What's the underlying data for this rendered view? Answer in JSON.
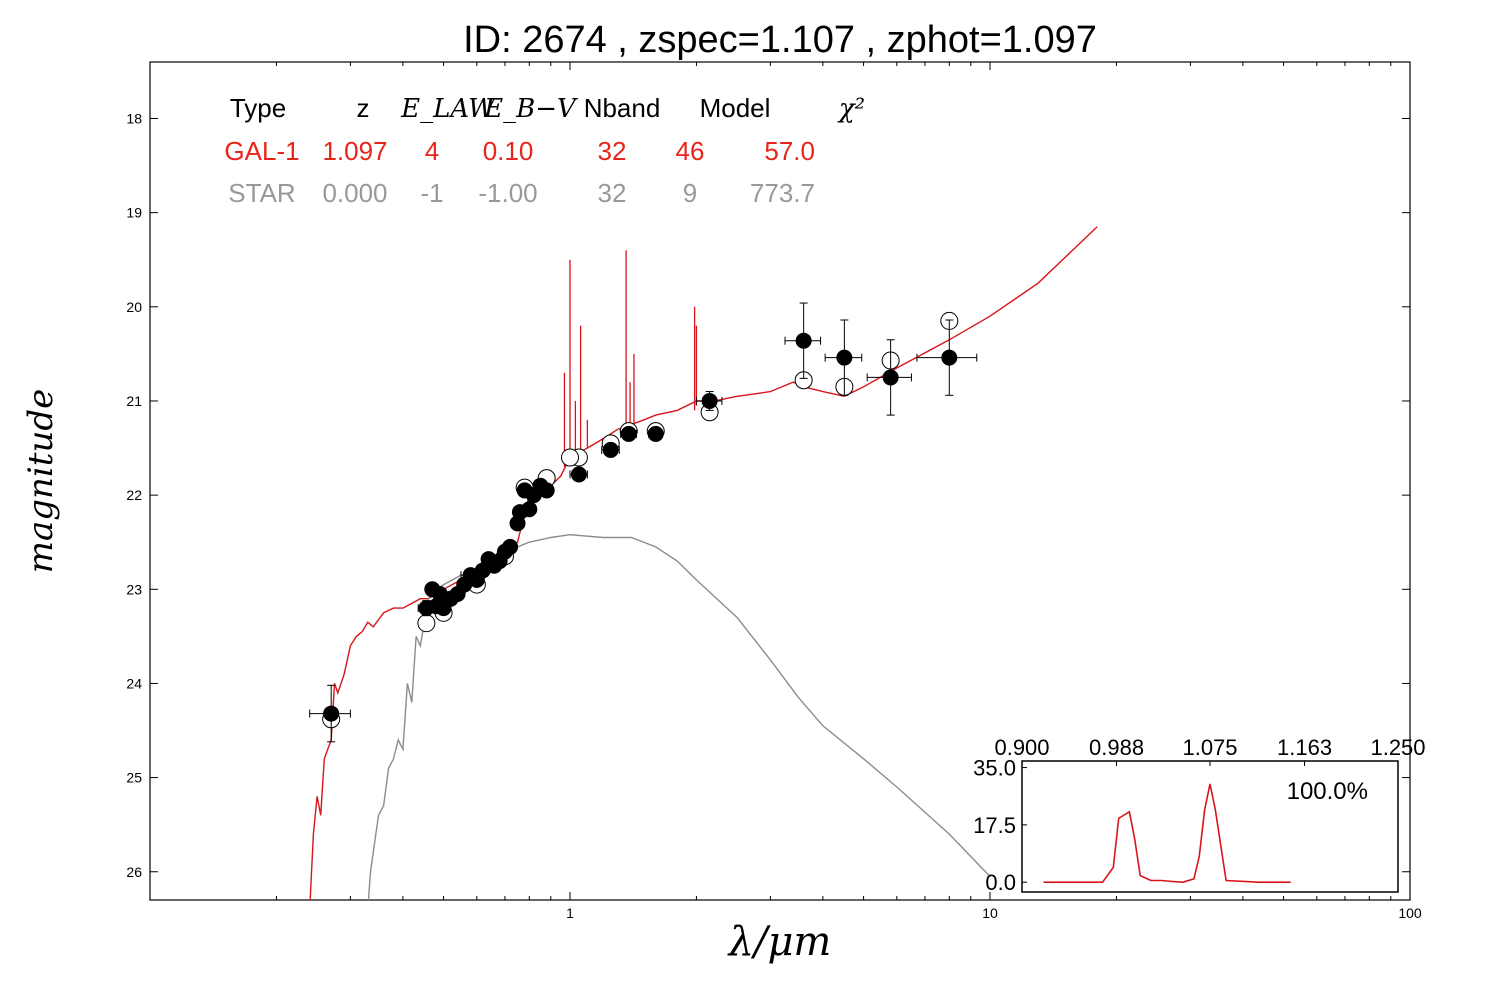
{
  "title": "ID:  2674  , zspec=1.107 , zphot=1.097",
  "chart_data": {
    "type": "scatter",
    "title": "ID:  2674  , zspec=1.107 , zphot=1.097",
    "xlabel": "λ/μm",
    "ylabel": "magnitude",
    "x_scale": "log",
    "xlim": [
      0.1,
      100
    ],
    "ylim": [
      26.3,
      17.4
    ],
    "y_inverted": true,
    "x_ticks": [
      1,
      10,
      100
    ],
    "x_tick_labels": [
      "1",
      "10",
      "100"
    ],
    "y_ticks": [
      18,
      19,
      20,
      21,
      22,
      23,
      24,
      25,
      26
    ],
    "y_tick_labels": [
      "18",
      "19",
      "20",
      "21",
      "22",
      "23",
      "24",
      "25",
      "26"
    ],
    "grid": false,
    "legend_table": {
      "headers": [
        "Type",
        "z",
        "E_LAW",
        "E_B−V",
        "Nband",
        "Model",
        "χ²"
      ],
      "rows": [
        {
          "cells": [
            "GAL-1",
            "1.097",
            "4",
            "0.10",
            "32",
            "46",
            "57.0"
          ],
          "color": "#e8251a"
        },
        {
          "cells": [
            "STAR",
            "0.000",
            "-1",
            "-1.00",
            "32",
            "9",
            "773.7"
          ],
          "color": "#999999"
        }
      ]
    },
    "series": [
      {
        "name": "GAL-1",
        "kind": "line",
        "color": "#d9141b",
        "x": [
          0.24,
          0.245,
          0.25,
          0.255,
          0.26,
          0.27,
          0.275,
          0.28,
          0.29,
          0.3,
          0.31,
          0.32,
          0.33,
          0.34,
          0.36,
          0.38,
          0.4,
          0.42,
          0.44,
          0.46,
          0.48,
          0.5,
          0.55,
          0.6,
          0.65,
          0.7,
          0.75,
          0.8,
          0.85,
          0.9,
          0.95,
          1.0,
          1.05,
          1.1,
          1.2,
          1.3,
          1.4,
          1.5,
          1.6,
          1.8,
          2.0,
          2.2,
          2.5,
          3.0,
          3.4,
          3.6,
          4.0,
          4.5,
          5.0,
          6.0,
          8.0,
          10.0,
          13.0,
          18.0
        ],
        "y": [
          26.4,
          25.6,
          25.2,
          25.4,
          24.8,
          24.6,
          24.0,
          24.1,
          23.9,
          23.6,
          23.5,
          23.45,
          23.35,
          23.4,
          23.25,
          23.2,
          23.2,
          23.15,
          23.1,
          23.1,
          23.05,
          23.0,
          22.9,
          22.8,
          22.7,
          22.6,
          22.5,
          22.0,
          21.95,
          21.9,
          21.8,
          21.6,
          21.55,
          21.5,
          21.4,
          21.3,
          21.25,
          21.2,
          21.15,
          21.1,
          21.0,
          21.0,
          20.95,
          20.9,
          20.8,
          20.85,
          20.9,
          20.95,
          20.85,
          20.65,
          20.35,
          20.1,
          19.75,
          19.15
        ]
      },
      {
        "name": "GAL-1 emission lines",
        "kind": "spikes",
        "color": "#d9141b",
        "x": [
          0.97,
          1.0,
          1.03,
          1.06,
          1.1,
          1.36,
          1.39,
          1.42,
          1.98,
          2.0
        ],
        "y_base": [
          21.7,
          21.6,
          21.6,
          21.55,
          21.5,
          21.3,
          21.28,
          21.3,
          21.1,
          21.05
        ],
        "y_peak": [
          20.7,
          19.5,
          21.0,
          20.2,
          21.2,
          19.4,
          20.8,
          20.5,
          20.0,
          20.2
        ]
      },
      {
        "name": "STAR",
        "kind": "line",
        "color": "#8c8c8c",
        "x": [
          0.33,
          0.335,
          0.34,
          0.35,
          0.36,
          0.37,
          0.38,
          0.39,
          0.4,
          0.41,
          0.42,
          0.43,
          0.44,
          0.46,
          0.48,
          0.5,
          0.55,
          0.6,
          0.65,
          0.7,
          0.75,
          0.8,
          0.9,
          1.0,
          1.2,
          1.4,
          1.6,
          1.8,
          2.0,
          2.5,
          3.0,
          3.5,
          4.0,
          5.0,
          6.0,
          8.0,
          10.0
        ],
        "y": [
          26.4,
          26.0,
          25.8,
          25.4,
          25.3,
          24.9,
          24.8,
          24.6,
          24.7,
          24.0,
          24.2,
          23.5,
          23.6,
          23.1,
          23.0,
          22.95,
          22.85,
          22.8,
          22.75,
          22.65,
          22.55,
          22.5,
          22.45,
          22.42,
          22.45,
          22.45,
          22.55,
          22.7,
          22.9,
          23.3,
          23.75,
          24.15,
          24.45,
          24.8,
          25.1,
          25.6,
          26.05
        ]
      },
      {
        "name": "observed",
        "kind": "points",
        "marker": "filled-circle",
        "color": "#000000",
        "points": [
          {
            "x": 0.27,
            "y": 24.32,
            "xerr": 0.03,
            "yerr": 0.3
          },
          {
            "x": 0.455,
            "y": 23.2,
            "xerr": 0.02,
            "yerr": 0.08
          },
          {
            "x": 0.47,
            "y": 23.0,
            "xerr": 0.01,
            "yerr": 0.05
          },
          {
            "x": 0.48,
            "y": 23.18,
            "xerr": 0.01,
            "yerr": 0.05
          },
          {
            "x": 0.49,
            "y": 23.05,
            "xerr": 0.01,
            "yerr": 0.05
          },
          {
            "x": 0.5,
            "y": 23.2,
            "xerr": 0.01,
            "yerr": 0.05
          },
          {
            "x": 0.52,
            "y": 23.1,
            "xerr": 0.01,
            "yerr": 0.05
          },
          {
            "x": 0.54,
            "y": 23.05,
            "xerr": 0.01,
            "yerr": 0.05
          },
          {
            "x": 0.56,
            "y": 22.95,
            "xerr": 0.01,
            "yerr": 0.05
          },
          {
            "x": 0.58,
            "y": 22.85,
            "xerr": 0.03,
            "yerr": 0.05
          },
          {
            "x": 0.6,
            "y": 22.9,
            "xerr": 0.01,
            "yerr": 0.05
          },
          {
            "x": 0.62,
            "y": 22.8,
            "xerr": 0.01,
            "yerr": 0.05
          },
          {
            "x": 0.64,
            "y": 22.68,
            "xerr": 0.02,
            "yerr": 0.05
          },
          {
            "x": 0.66,
            "y": 22.75,
            "xerr": 0.01,
            "yerr": 0.05
          },
          {
            "x": 0.68,
            "y": 22.7,
            "xerr": 0.01,
            "yerr": 0.05
          },
          {
            "x": 0.7,
            "y": 22.6,
            "xerr": 0.01,
            "yerr": 0.05
          },
          {
            "x": 0.72,
            "y": 22.55,
            "xerr": 0.01,
            "yerr": 0.05
          },
          {
            "x": 0.75,
            "y": 22.3,
            "xerr": 0.01,
            "yerr": 0.05
          },
          {
            "x": 0.76,
            "y": 22.18,
            "xerr": 0.01,
            "yerr": 0.05
          },
          {
            "x": 0.78,
            "y": 21.95,
            "xerr": 0.01,
            "yerr": 0.05
          },
          {
            "x": 0.8,
            "y": 22.15,
            "xerr": 0.01,
            "yerr": 0.05
          },
          {
            "x": 0.82,
            "y": 22.0,
            "xerr": 0.01,
            "yerr": 0.05
          },
          {
            "x": 0.85,
            "y": 21.9,
            "xerr": 0.02,
            "yerr": 0.05
          },
          {
            "x": 0.88,
            "y": 21.95,
            "xerr": 0.01,
            "yerr": 0.05
          },
          {
            "x": 1.05,
            "y": 21.78,
            "xerr": 0.05,
            "yerr": 0.05
          },
          {
            "x": 1.25,
            "y": 21.52,
            "xerr": 0.06,
            "yerr": 0.05
          },
          {
            "x": 1.38,
            "y": 21.35,
            "xerr": 0.06,
            "yerr": 0.05
          },
          {
            "x": 1.6,
            "y": 21.35,
            "xerr": 0.06,
            "yerr": 0.05
          },
          {
            "x": 2.15,
            "y": 21.0,
            "xerr": 0.15,
            "yerr": 0.1
          },
          {
            "x": 3.6,
            "y": 20.36,
            "xerr": 0.35,
            "yerr": 0.4
          },
          {
            "x": 4.5,
            "y": 20.54,
            "xerr": 0.45,
            "yerr": 0.4
          },
          {
            "x": 5.8,
            "y": 20.75,
            "xerr": 0.7,
            "yerr": 0.4
          },
          {
            "x": 8.0,
            "y": 20.54,
            "xerr": 1.3,
            "yerr": 0.4
          }
        ]
      },
      {
        "name": "model",
        "kind": "points",
        "marker": "open-circle",
        "color": "#000000",
        "points": [
          {
            "x": 0.27,
            "y": 24.38
          },
          {
            "x": 0.455,
            "y": 23.36
          },
          {
            "x": 0.5,
            "y": 23.25
          },
          {
            "x": 0.6,
            "y": 22.95
          },
          {
            "x": 0.7,
            "y": 22.65
          },
          {
            "x": 0.78,
            "y": 21.92
          },
          {
            "x": 0.88,
            "y": 21.82
          },
          {
            "x": 1.0,
            "y": 21.6
          },
          {
            "x": 1.05,
            "y": 21.6
          },
          {
            "x": 1.25,
            "y": 21.45
          },
          {
            "x": 1.38,
            "y": 21.32
          },
          {
            "x": 1.6,
            "y": 21.32
          },
          {
            "x": 2.15,
            "y": 21.12
          },
          {
            "x": 3.6,
            "y": 20.78
          },
          {
            "x": 4.5,
            "y": 20.85
          },
          {
            "x": 5.8,
            "y": 20.57
          },
          {
            "x": 8.0,
            "y": 20.15
          }
        ]
      }
    ],
    "inset": {
      "type": "line",
      "color": "#d9141b",
      "xlim": [
        0.9,
        1.25
      ],
      "x_tick_labels": [
        "0.900",
        "0.988",
        "1.075",
        "1.163",
        "1.250"
      ],
      "ylim": [
        -3,
        37
      ],
      "y_tick_labels": [
        "0.0",
        "17.5",
        "35.0"
      ],
      "annotation": "100.0%",
      "x": [
        0.92,
        0.95,
        0.975,
        0.985,
        0.99,
        0.995,
        1.0,
        1.005,
        1.01,
        1.02,
        1.03,
        1.04,
        1.05,
        1.06,
        1.065,
        1.07,
        1.075,
        1.08,
        1.09,
        1.12,
        1.15
      ],
      "y": [
        0,
        0,
        0,
        4.5,
        19.5,
        20.5,
        21.5,
        13,
        2,
        0.5,
        0.5,
        0.2,
        0,
        1,
        8,
        22,
        30,
        22,
        0.5,
        0,
        0
      ]
    }
  }
}
